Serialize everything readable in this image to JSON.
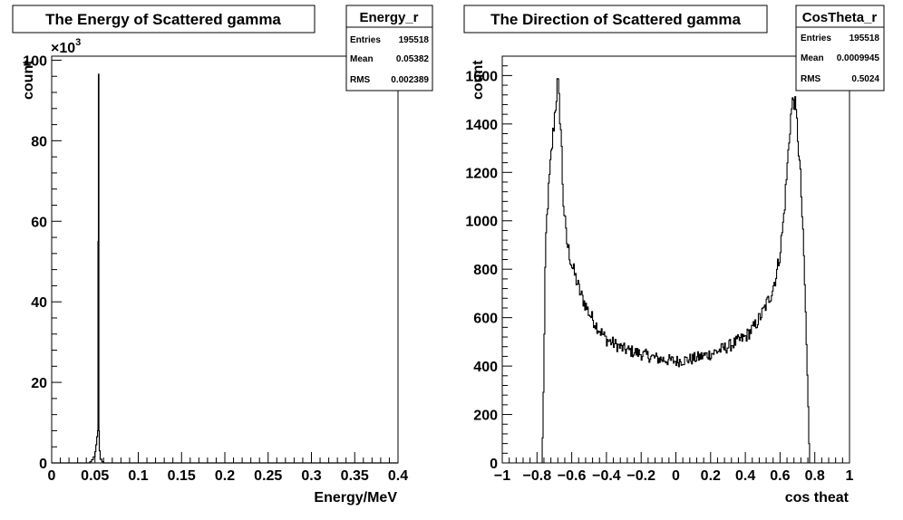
{
  "chart_data": [
    {
      "type": "histogram",
      "title": "The Energy of Scattered gamma",
      "xlabel": "Energy/MeV",
      "ylabel": "count",
      "xlim": [
        0,
        0.4
      ],
      "ylim": [
        0,
        101000
      ],
      "y_multiplier_label": "×10",
      "y_multiplier_exp": "3",
      "xticks": [
        "0",
        "0.05",
        "0.1",
        "0.15",
        "0.2",
        "0.25",
        "0.3",
        "0.35",
        "0.4"
      ],
      "xtick_values": [
        0,
        0.05,
        0.1,
        0.15,
        0.2,
        0.25,
        0.3,
        0.35,
        0.4
      ],
      "yticks": [
        "0",
        "20",
        "40",
        "60",
        "80",
        "100"
      ],
      "ytick_values": [
        0,
        20000,
        40000,
        60000,
        80000,
        100000
      ],
      "stats": {
        "name": "Energy_r",
        "rows": [
          {
            "label": "Entries",
            "value": "195518"
          },
          {
            "label": "Mean",
            "value": "0.05382"
          },
          {
            "label": "RMS",
            "value": "0.002389"
          }
        ]
      },
      "bins": [
        [
          0.04,
          0
        ],
        [
          0.044,
          300
        ],
        [
          0.046,
          800
        ],
        [
          0.048,
          1500
        ],
        [
          0.05,
          2800
        ],
        [
          0.051,
          4500
        ],
        [
          0.052,
          6500
        ],
        [
          0.053,
          8000
        ],
        [
          0.0535,
          55000
        ],
        [
          0.054,
          96500
        ],
        [
          0.0545,
          8000
        ],
        [
          0.055,
          3000
        ],
        [
          0.056,
          900
        ],
        [
          0.058,
          300
        ],
        [
          0.06,
          0
        ]
      ]
    },
    {
      "type": "histogram",
      "title": "The Direction of Scattered gamma",
      "xlabel": "cos theat",
      "ylabel": "count",
      "xlim": [
        -1,
        1
      ],
      "ylim": [
        0,
        1680
      ],
      "xticks": [
        "−1",
        "−0.8",
        "−0.6",
        "−0.4",
        "−0.2",
        "0",
        "0.2",
        "0.4",
        "0.6",
        "0.8",
        "1"
      ],
      "xtick_values": [
        -1,
        -0.8,
        -0.6,
        -0.4,
        -0.2,
        0,
        0.2,
        0.4,
        0.6,
        0.8,
        1
      ],
      "yticks": [
        "0",
        "200",
        "400",
        "600",
        "800",
        "1000",
        "1200",
        "1400",
        "1600"
      ],
      "ytick_values": [
        0,
        200,
        400,
        600,
        800,
        1000,
        1200,
        1400,
        1600
      ],
      "stats": {
        "name": "CosTheta_r",
        "rows": [
          {
            "label": "Entries",
            "value": "195518"
          },
          {
            "label": "Mean",
            "value": "0.0009945"
          },
          {
            "label": "RMS",
            "value": "0.5024"
          }
        ]
      },
      "profile": [
        [
          -0.77,
          0
        ],
        [
          -0.76,
          400
        ],
        [
          -0.75,
          900
        ],
        [
          -0.74,
          1050
        ],
        [
          -0.72,
          1250
        ],
        [
          -0.7,
          1420
        ],
        [
          -0.68,
          1580
        ],
        [
          -0.66,
          1350
        ],
        [
          -0.65,
          1100
        ],
        [
          -0.63,
          920
        ],
        [
          -0.6,
          820
        ],
        [
          -0.55,
          700
        ],
        [
          -0.5,
          620
        ],
        [
          -0.45,
          560
        ],
        [
          -0.4,
          510
        ],
        [
          -0.3,
          470
        ],
        [
          -0.2,
          450
        ],
        [
          -0.1,
          430
        ],
        [
          0,
          420
        ],
        [
          0.1,
          430
        ],
        [
          0.2,
          450
        ],
        [
          0.3,
          480
        ],
        [
          0.4,
          520
        ],
        [
          0.45,
          560
        ],
        [
          0.5,
          620
        ],
        [
          0.55,
          700
        ],
        [
          0.58,
          780
        ],
        [
          0.6,
          870
        ],
        [
          0.62,
          1000
        ],
        [
          0.64,
          1200
        ],
        [
          0.66,
          1420
        ],
        [
          0.68,
          1520
        ],
        [
          0.7,
          1380
        ],
        [
          0.72,
          1150
        ],
        [
          0.74,
          800
        ],
        [
          0.76,
          300
        ],
        [
          0.77,
          0
        ]
      ]
    }
  ]
}
